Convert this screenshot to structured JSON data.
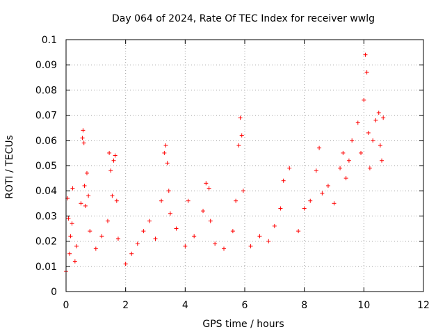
{
  "chart_data": {
    "type": "scatter",
    "title": "Day 064 of 2024, Rate Of TEC Index for receiver wwlg",
    "xlabel": "GPS time / hours",
    "ylabel": "ROTI / TECUs",
    "xlim": [
      0,
      12
    ],
    "ylim": [
      0,
      0.1
    ],
    "x_ticks": [
      "0",
      "2",
      "4",
      "6",
      "8",
      "10",
      "12"
    ],
    "y_ticks": [
      "0",
      "0.01",
      "0.02",
      "0.03",
      "0.04",
      "0.05",
      "0.06",
      "0.07",
      "0.08",
      "0.09",
      "0.1"
    ],
    "grid": true,
    "marker": "+",
    "series_color": "#ff0000",
    "series": [
      {
        "name": "ROTI",
        "x": [
          0.0,
          0.05,
          0.08,
          0.12,
          0.15,
          0.2,
          0.22,
          0.3,
          0.35,
          0.5,
          0.55,
          0.57,
          0.6,
          0.62,
          0.65,
          0.7,
          0.75,
          0.8,
          1.0,
          1.2,
          1.4,
          1.45,
          1.5,
          1.55,
          1.6,
          1.65,
          1.7,
          1.75,
          2.0,
          2.2,
          2.4,
          2.6,
          2.8,
          3.0,
          3.2,
          3.3,
          3.35,
          3.4,
          3.45,
          3.5,
          3.7,
          4.0,
          4.1,
          4.3,
          4.6,
          4.7,
          4.8,
          4.85,
          5.0,
          5.3,
          5.6,
          5.7,
          5.8,
          5.85,
          5.9,
          5.95,
          6.2,
          6.5,
          6.8,
          7.0,
          7.2,
          7.3,
          7.5,
          7.8,
          8.0,
          8.2,
          8.4,
          8.5,
          8.6,
          8.8,
          9.0,
          9.2,
          9.3,
          9.4,
          9.5,
          9.6,
          9.8,
          9.9,
          10.0,
          10.05,
          10.1,
          10.15,
          10.2,
          10.3,
          10.4,
          10.5,
          10.55,
          10.6,
          10.65
        ],
        "y": [
          0.008,
          0.037,
          0.029,
          0.015,
          0.022,
          0.027,
          0.041,
          0.012,
          0.018,
          0.035,
          0.061,
          0.064,
          0.059,
          0.042,
          0.034,
          0.047,
          0.038,
          0.024,
          0.017,
          0.022,
          0.028,
          0.055,
          0.048,
          0.038,
          0.052,
          0.054,
          0.036,
          0.021,
          0.011,
          0.015,
          0.019,
          0.024,
          0.028,
          0.021,
          0.036,
          0.055,
          0.058,
          0.051,
          0.04,
          0.031,
          0.025,
          0.018,
          0.036,
          0.022,
          0.032,
          0.043,
          0.041,
          0.028,
          0.019,
          0.017,
          0.024,
          0.036,
          0.058,
          0.069,
          0.062,
          0.04,
          0.018,
          0.022,
          0.02,
          0.026,
          0.033,
          0.044,
          0.049,
          0.024,
          0.033,
          0.036,
          0.048,
          0.057,
          0.039,
          0.042,
          0.035,
          0.049,
          0.055,
          0.045,
          0.052,
          0.06,
          0.067,
          0.055,
          0.076,
          0.094,
          0.087,
          0.063,
          0.049,
          0.06,
          0.068,
          0.071,
          0.058,
          0.052,
          0.069
        ]
      }
    ]
  }
}
